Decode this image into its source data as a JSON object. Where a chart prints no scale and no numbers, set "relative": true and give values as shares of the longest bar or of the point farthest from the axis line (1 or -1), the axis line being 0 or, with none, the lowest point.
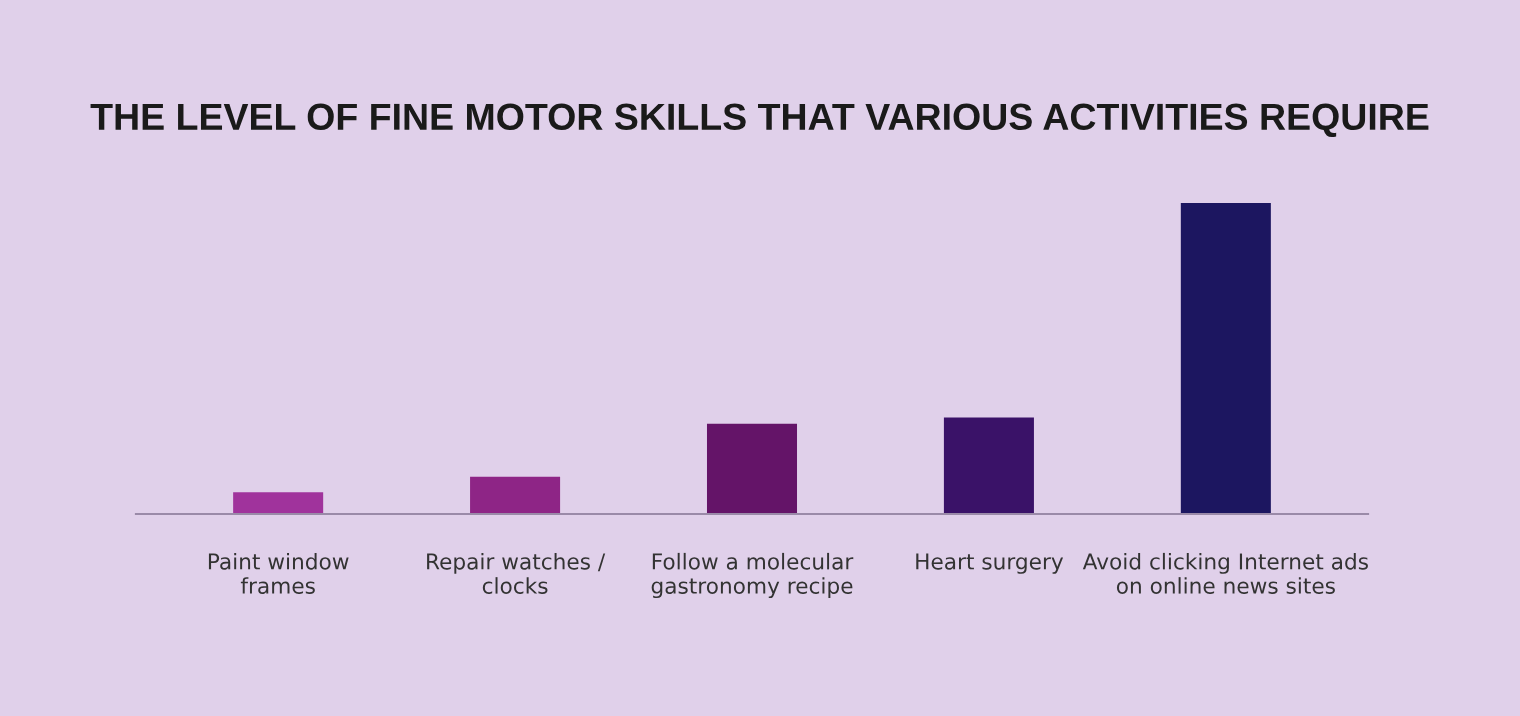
{
  "chart_data": {
    "type": "bar",
    "title": "THE LEVEL OF FINE MOTOR SKILLS THAT VARIOUS ACTIVITIES REQUIRE",
    "categories": [
      "Paint window\nframes",
      "Repair watches /\nclocks",
      "Follow a molecular\ngastronomy recipe",
      "Heart surgery",
      "Avoid clicking Internet ads\non online news sites"
    ],
    "values": [
      0.07,
      0.12,
      0.29,
      0.31,
      1
    ],
    "colors": [
      "#a0339c",
      "#8e2586",
      "#641468",
      "#3a1268",
      "#1c1660"
    ],
    "relative": true,
    "grid": false,
    "legend": false
  }
}
